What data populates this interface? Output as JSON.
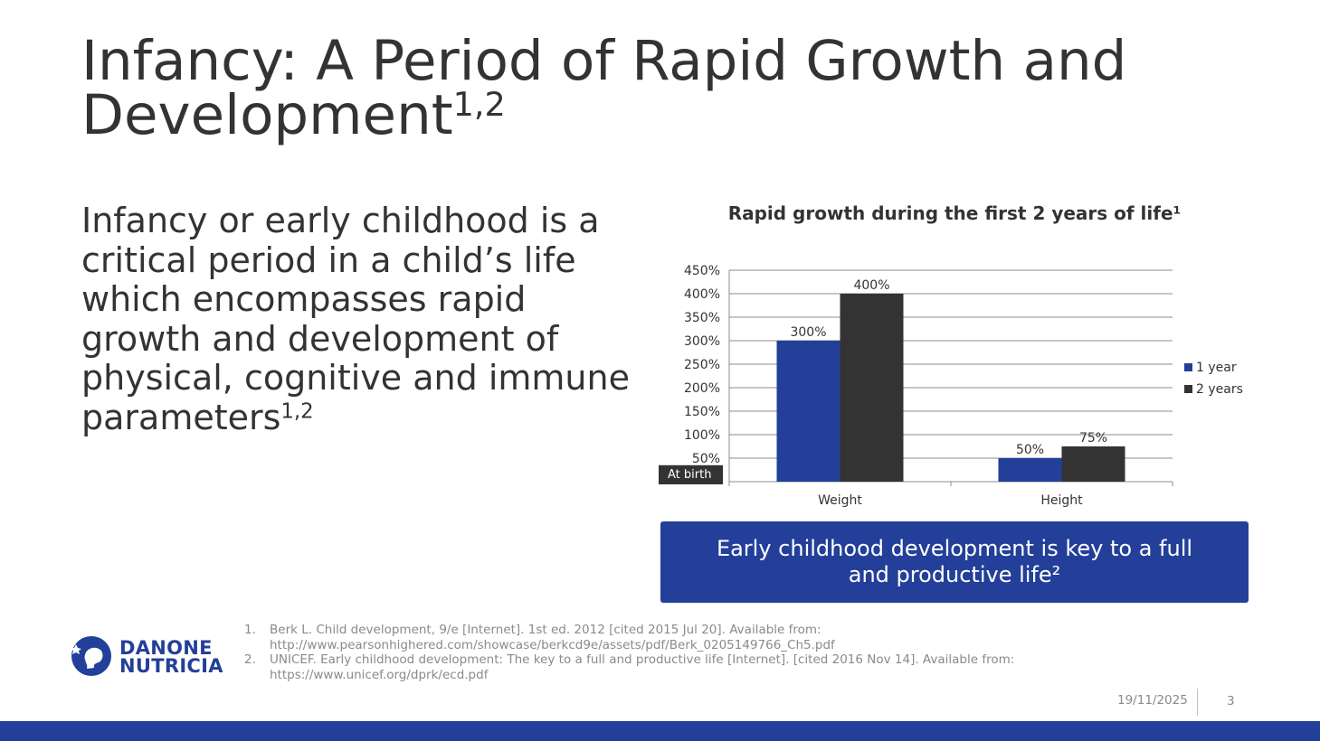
{
  "slide": {
    "title": "Infancy: A Period of Rapid Growth and Development",
    "title_sup": "1,2",
    "body": "Infancy or early childhood is a critical period in a child’s life which encompasses rapid growth and development of physical, cognitive and immune parameters",
    "body_sup": "1,2",
    "callout": "Early childhood development is key to a full and productive life²",
    "references": [
      {
        "num": "1.",
        "text": "Berk L. Child development, 9/e [Internet]. 1st ed. 2012 [cited 2015 Jul 20]. Available from: http://www.pearsonhighered.com/showcase/berkcd9e/assets/pdf/Berk_0205149766_Ch5.pdf"
      },
      {
        "num": "2.",
        "text": "UNICEF. Early childhood development: The key to a full and productive life [Internet]. [cited 2016 Nov 14]. Available from: https://www.unicef.org/dprk/ecd.pdf"
      }
    ],
    "logo": {
      "line1": "DANONE",
      "line2": "NUTRICIA"
    },
    "date": "19/11/2025",
    "page_number": "3"
  },
  "colors": {
    "brand_blue": "#233f99",
    "dark_series": "#333333",
    "text": "#333333",
    "muted": "#8a8a8a"
  },
  "chart_data": {
    "type": "bar",
    "title": "Rapid growth during the first 2 years of life¹",
    "categories": [
      "Weight",
      "Height"
    ],
    "series": [
      {
        "name": "1 year",
        "values": [
          300,
          50
        ],
        "labels": [
          "300%",
          "50%"
        ],
        "color": "#233f99"
      },
      {
        "name": "2 years",
        "values": [
          400,
          75
        ],
        "labels": [
          "400%",
          "75%"
        ],
        "color": "#333333"
      }
    ],
    "ylim": [
      0,
      450
    ],
    "ytick_step": 50,
    "yticks": [
      "450%",
      "400%",
      "350%",
      "300%",
      "250%",
      "200%",
      "150%",
      "100%",
      "50%"
    ],
    "baseline_label": "At birth",
    "legend_position": "right",
    "grid": true
  }
}
